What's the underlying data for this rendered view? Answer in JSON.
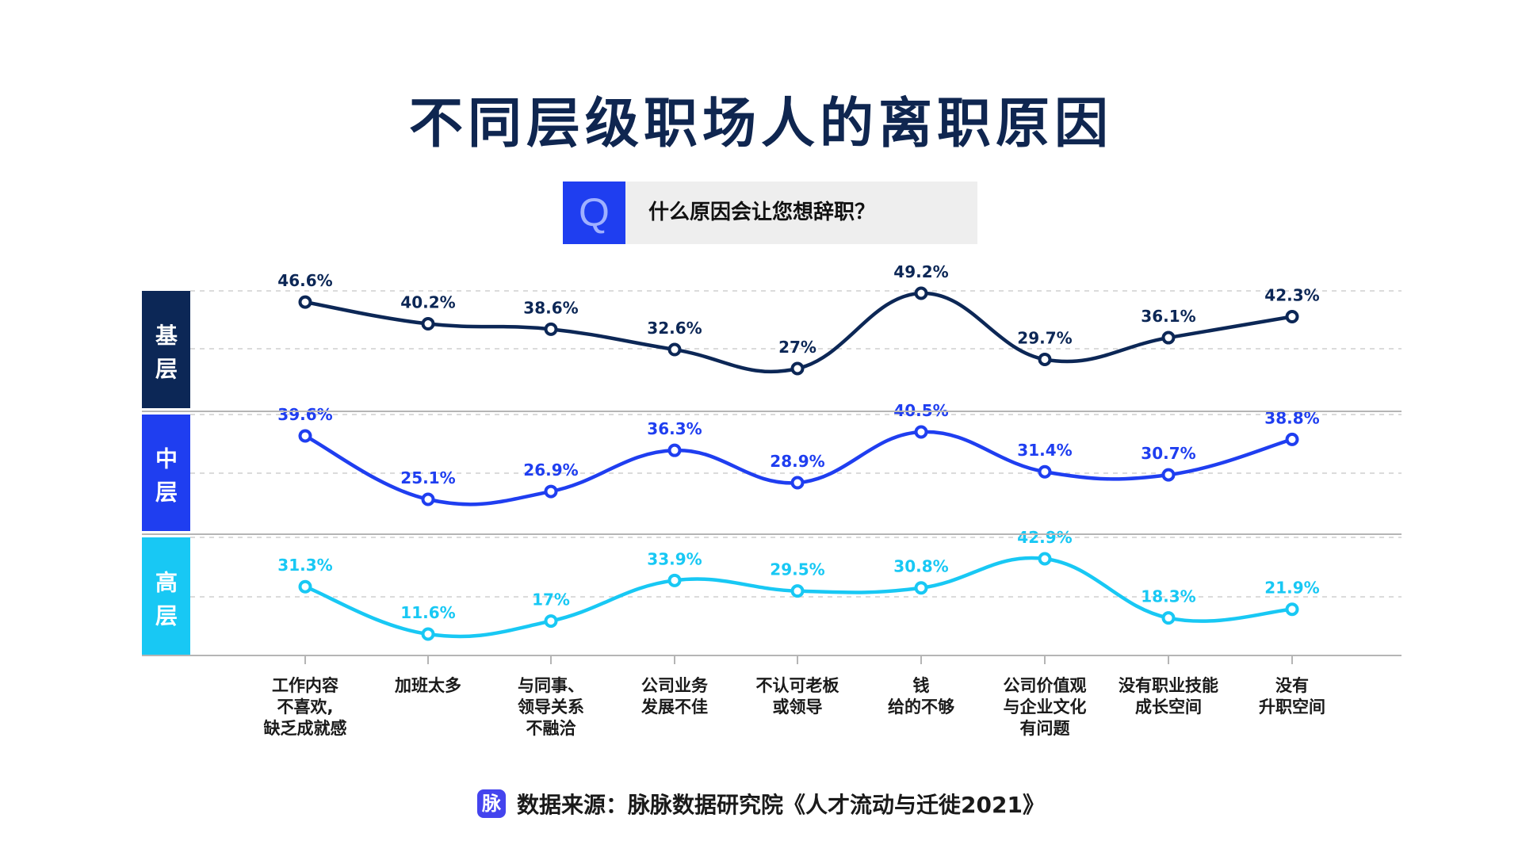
{
  "chart_data": {
    "type": "line",
    "title": "不同层级职场人的离职原因",
    "question": {
      "icon_letter": "Q",
      "text": "什么原因会让您想辞职？"
    },
    "categories": [
      [
        "工作内容",
        "不喜欢,",
        "缺乏成就感"
      ],
      [
        "加班太多"
      ],
      [
        "与同事、",
        "领导关系",
        "不融洽"
      ],
      [
        "公司业务",
        "发展不佳"
      ],
      [
        "不认可老板",
        "或领导"
      ],
      [
        "钱",
        "给的不够"
      ],
      [
        "公司价值观",
        "与企业文化",
        "有问题"
      ],
      [
        "没有职业技能",
        "成长空间"
      ],
      [
        "没有",
        "升职空间"
      ]
    ],
    "series": [
      {
        "name": "基层",
        "color": "#0c2756",
        "values": [
          46.6,
          40.2,
          38.6,
          32.6,
          27,
          49.2,
          29.7,
          36.1,
          42.3
        ],
        "labels": [
          "46.6%",
          "40.2%",
          "38.6%",
          "32.6%",
          "27%",
          "49.2%",
          "29.7%",
          "36.1%",
          "42.3%"
        ]
      },
      {
        "name": "中层",
        "color": "#1f3ef0",
        "values": [
          39.6,
          25.1,
          26.9,
          36.3,
          28.9,
          40.5,
          31.4,
          30.7,
          38.8
        ],
        "labels": [
          "39.6%",
          "25.1%",
          "26.9%",
          "36.3%",
          "28.9%",
          "40.5%",
          "31.4%",
          "30.7%",
          "38.8%"
        ]
      },
      {
        "name": "高层",
        "color": "#18c8f4",
        "values": [
          31.3,
          11.6,
          17,
          33.9,
          29.5,
          30.8,
          42.9,
          18.3,
          21.9
        ],
        "labels": [
          "31.3%",
          "11.6%",
          "17%",
          "33.9%",
          "29.5%",
          "30.8%",
          "42.9%",
          "18.3%",
          "21.9%"
        ]
      }
    ],
    "grid": true,
    "legend": "left-side vertical panels"
  },
  "source": {
    "logo_char": "脉",
    "text": "数据来源：脉脉数据研究院《人才流动与迁徙2021》"
  }
}
